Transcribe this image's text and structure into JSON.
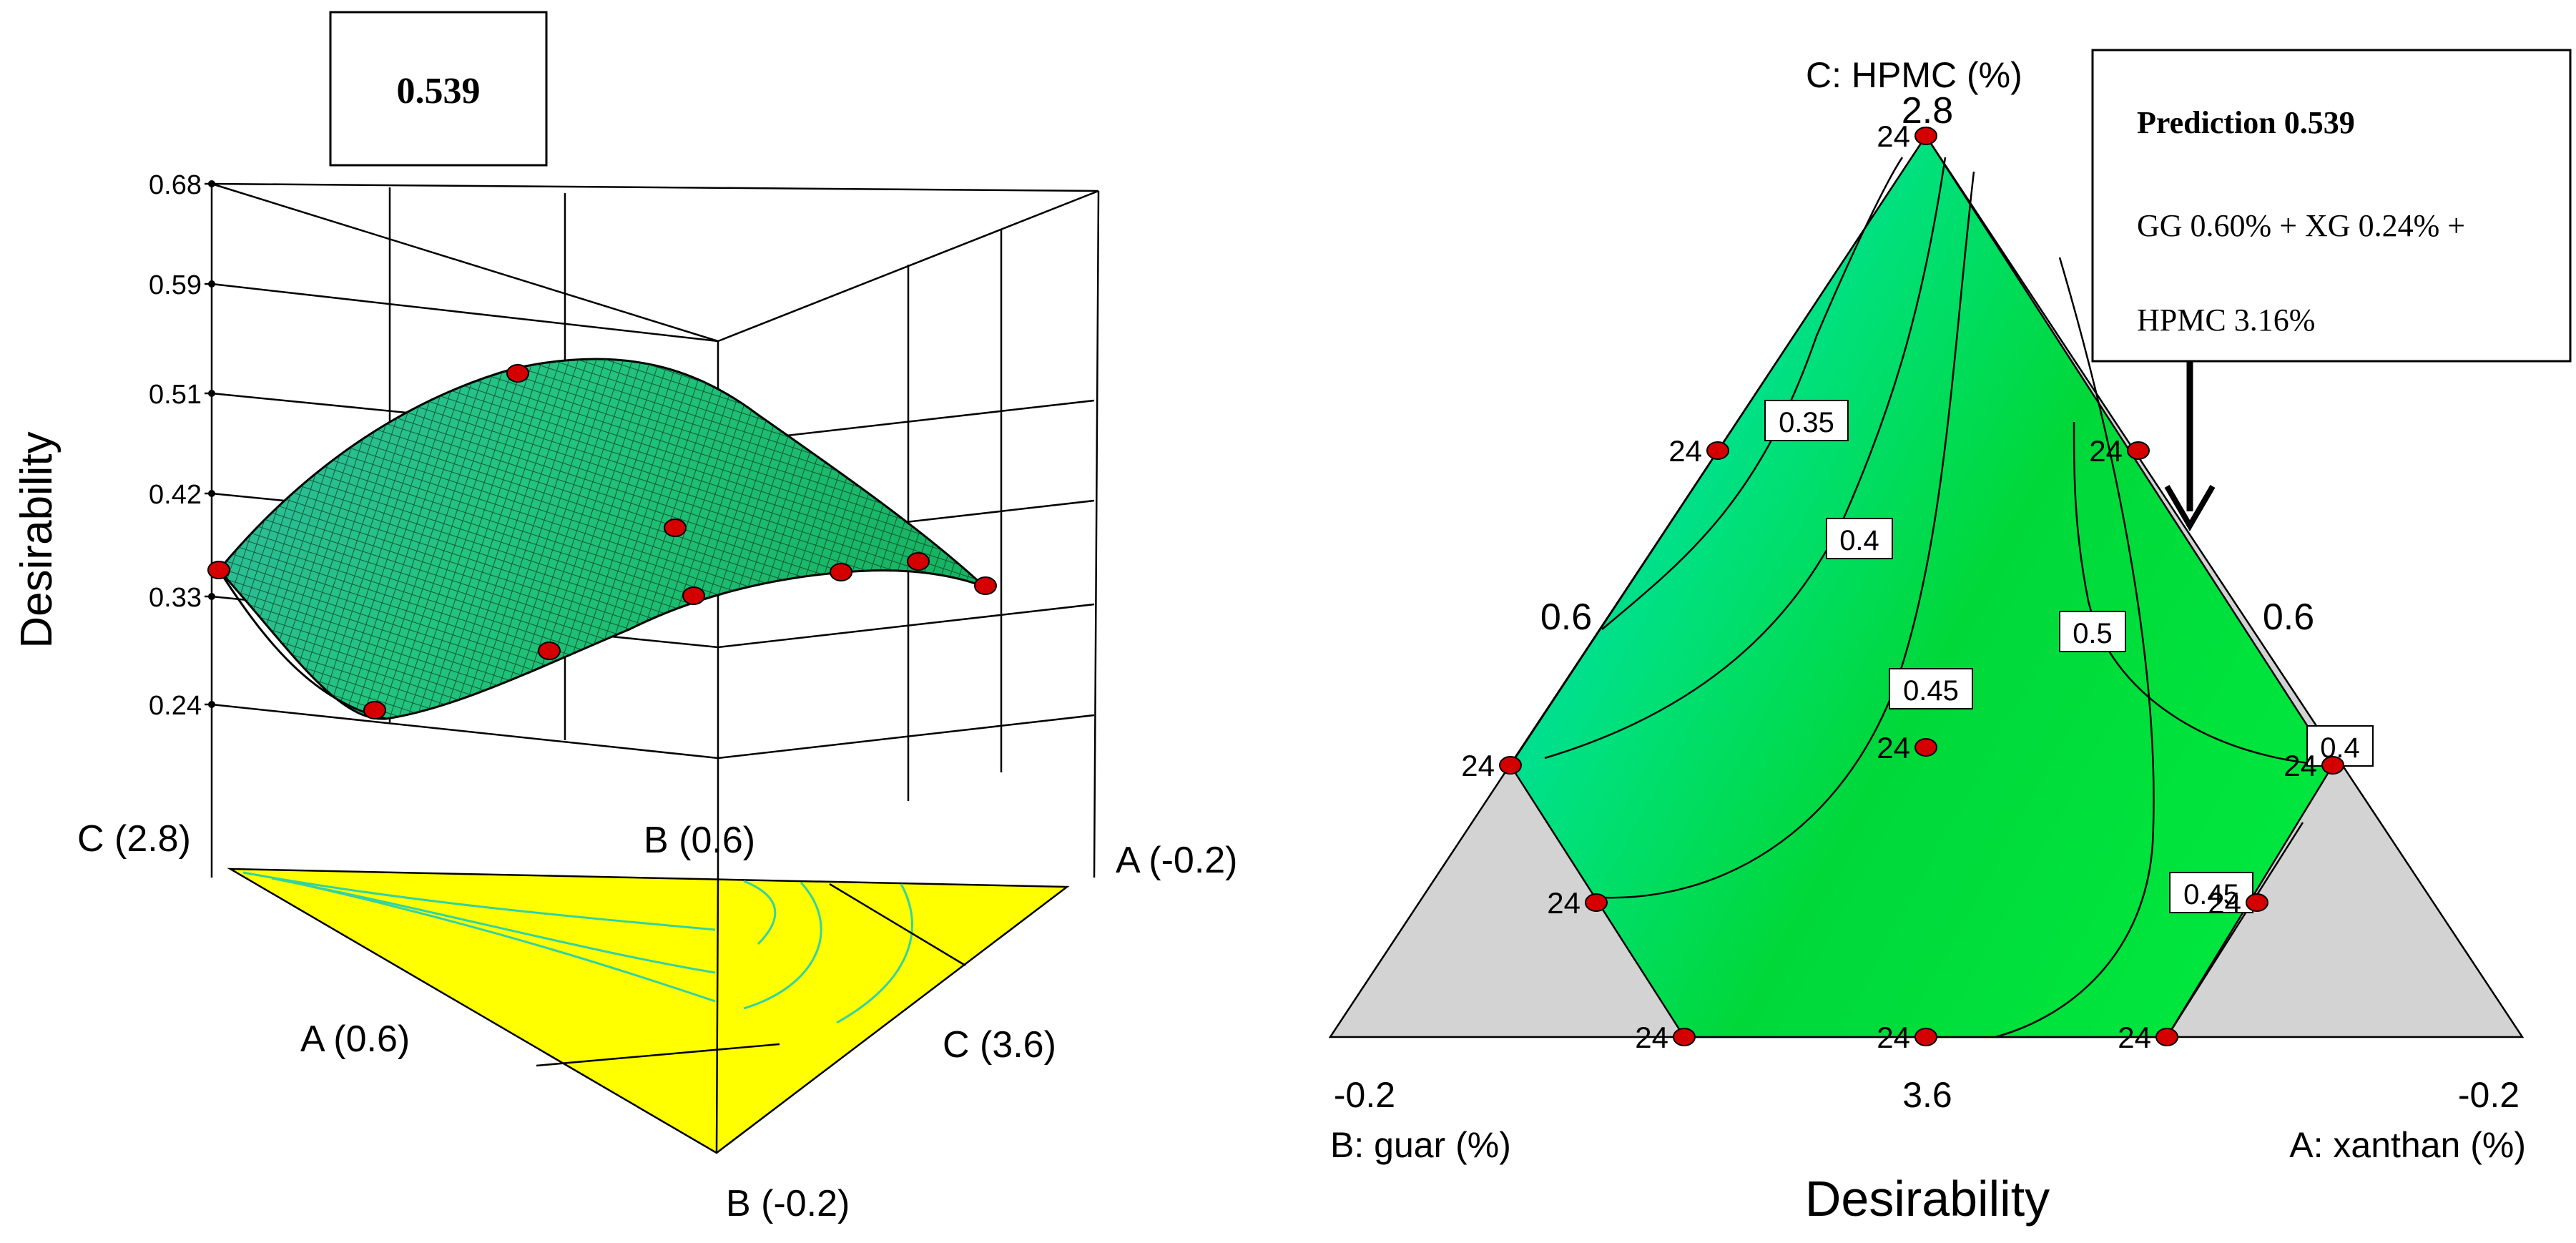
{
  "chart_data": [
    {
      "type": "surface",
      "zlabel": "Desirability",
      "zticks": [
        "0.68",
        "0.59",
        "0.51",
        "0.42",
        "0.33",
        "0.24"
      ],
      "z_range": [
        0.24,
        0.68
      ],
      "corner_labels": {
        "c_high": "C (2.8)",
        "b_high": "B (0.6)",
        "a_low": "A (-0.2)",
        "a_high": "A (0.6)",
        "c_low": "C (3.6)",
        "b_low": "B (-0.2)"
      },
      "flag_value": "0.539",
      "colors": {
        "surface_top": "#1fc97a",
        "surface_side": "#2aaa8f",
        "floor": "#ffff00",
        "floor_contour": "#34d3a0",
        "point": "#d40000"
      }
    },
    {
      "type": "ternary-contour",
      "xlabel": "Desirability",
      "axes": {
        "top": {
          "title": "C: HPMC (%)",
          "value": "2.8"
        },
        "left": {
          "title": "B: guar (%)",
          "value": "-0.2"
        },
        "right": {
          "title": "A: xanthan (%)",
          "value": "-0.2"
        },
        "bottom_value": "3.6",
        "left_mid_value": "0.6",
        "right_mid_value": "0.6"
      },
      "contours": [
        {
          "level": 0.35,
          "label": "0.35"
        },
        {
          "level": 0.4,
          "label": "0.4"
        },
        {
          "level": 0.45,
          "label": "0.45"
        },
        {
          "level": 0.5,
          "label": "0.5"
        },
        {
          "level": 0.4,
          "label": "0.4"
        },
        {
          "level": 0.45,
          "label": "0.45"
        }
      ],
      "design_points": [
        {
          "label": "24"
        },
        {
          "label": "24"
        },
        {
          "label": "24"
        },
        {
          "label": "24"
        },
        {
          "label": "24"
        },
        {
          "label": "24"
        },
        {
          "label": "24"
        },
        {
          "label": "24"
        },
        {
          "label": "24"
        },
        {
          "label": "24"
        },
        {
          "label": "24"
        }
      ],
      "prediction": {
        "title": "Prediction 0.539",
        "line1": "GG 0.60% + XG 0.24% +",
        "line2": "HPMC 3.16%"
      },
      "colors": {
        "region_light": "#00e0c8",
        "region_main": "#00e23a",
        "excluded": "#d3d3d3",
        "point": "#d40000"
      }
    }
  ]
}
